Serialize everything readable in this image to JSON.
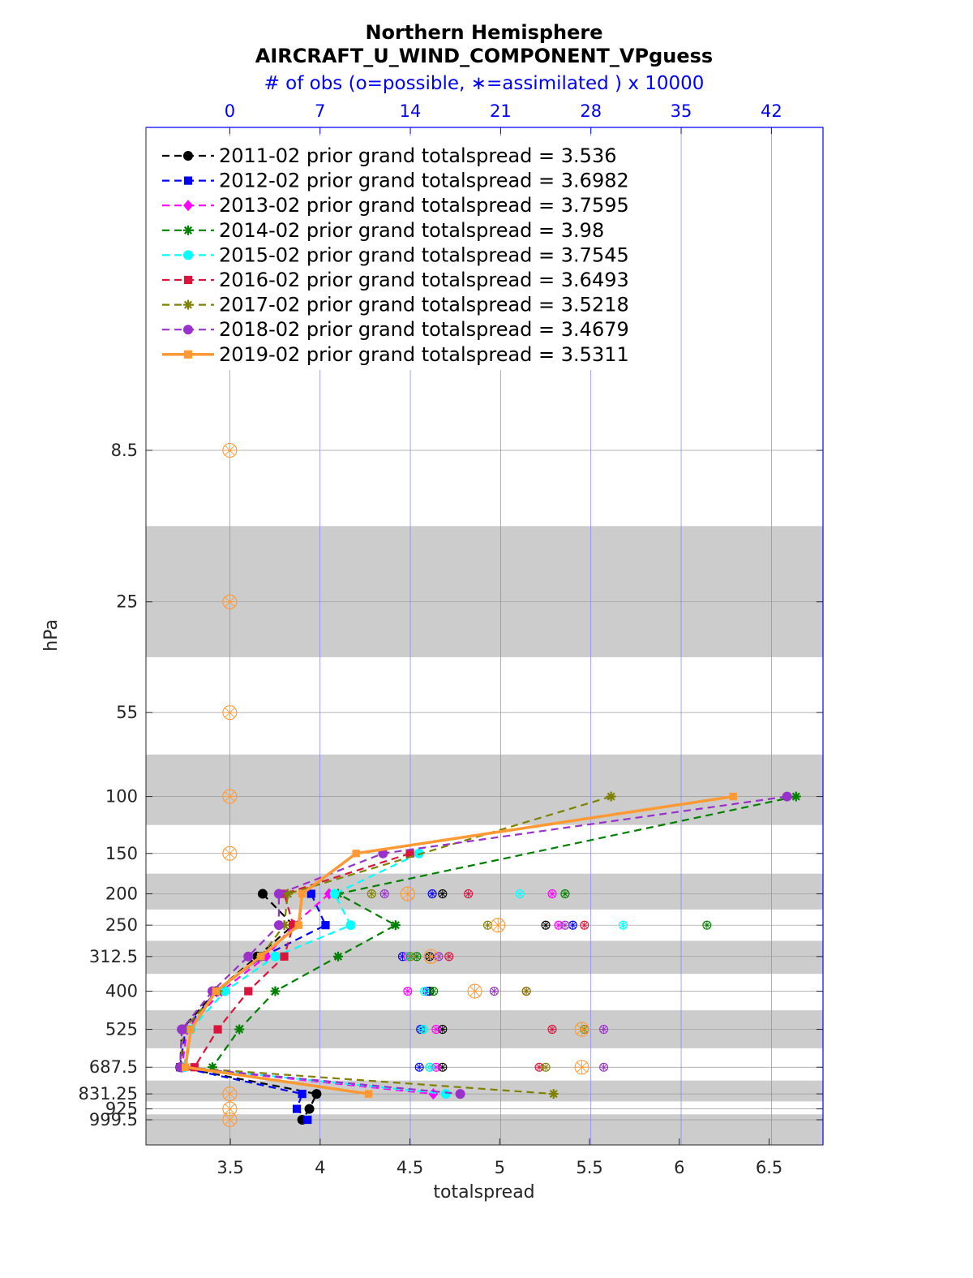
{
  "chart_data": {
    "type": "line",
    "title": "Northern Hemisphere",
    "subtitle": "AIRCRAFT_U_WIND_COMPONENT_VPguess",
    "top_axis_label": "# of obs (o=possible, ∗=assimilated ) x 10000",
    "xlabel": "totalspread",
    "ylabel": "hPa",
    "xlim": [
      3.03,
      6.8
    ],
    "xticks": [
      "3.5",
      "4",
      "4.5",
      "5",
      "5.5",
      "6",
      "6.5"
    ],
    "top_xlim": [
      -6.5,
      46
    ],
    "top_xticks": [
      "0",
      "7",
      "14",
      "21",
      "28",
      "35",
      "42"
    ],
    "y_levels": [
      "8.5",
      "25",
      "55",
      "100",
      "150",
      "200",
      "250",
      "312.5",
      "400",
      "525",
      "687.5",
      "831.25",
      "925",
      "999.5"
    ],
    "y_scale": "log-pressure (reversed)",
    "grid": true,
    "legend_position": "top-left",
    "series": [
      {
        "name": "2011-02 prior grand totalspread = 3.536",
        "color": "#000000",
        "marker": "circle",
        "line": "dashed",
        "points": [
          [
            200,
            3.68
          ],
          [
            250,
            3.85
          ],
          [
            312.5,
            3.65
          ],
          [
            400,
            3.42
          ],
          [
            525,
            3.23
          ],
          [
            687.5,
            3.22
          ],
          [
            831.25,
            3.98
          ],
          [
            925,
            3.94
          ],
          [
            999.5,
            3.9
          ]
        ],
        "obs_possible": [
          [
            200,
            16.5
          ],
          [
            250,
            24.5
          ],
          [
            312.5,
            15.5
          ],
          [
            400,
            15.5
          ],
          [
            525,
            16.5
          ],
          [
            687.5,
            16.5
          ]
        ]
      },
      {
        "name": "2012-02 prior grand totalspread = 3.6982",
        "color": "#0000ff",
        "marker": "square",
        "line": "dashed",
        "points": [
          [
            200,
            3.95
          ],
          [
            250,
            4.03
          ],
          [
            312.5,
            3.68
          ],
          [
            400,
            3.42
          ],
          [
            525,
            3.25
          ],
          [
            687.5,
            3.22
          ],
          [
            831.25,
            3.9
          ],
          [
            925,
            3.87
          ],
          [
            999.5,
            3.93
          ]
        ],
        "obs_possible": [
          [
            200,
            15.7
          ],
          [
            250,
            26.6
          ],
          [
            312.5,
            13.4
          ],
          [
            400,
            15.3
          ],
          [
            525,
            14.8
          ],
          [
            687.5,
            14.7
          ]
        ]
      },
      {
        "name": "2013-02 prior grand totalspread = 3.7595",
        "color": "#ff00ff",
        "marker": "diamond",
        "line": "dashed",
        "points": [
          [
            200,
            4.05
          ],
          [
            250,
            3.85
          ],
          [
            312.5,
            3.7
          ],
          [
            400,
            3.45
          ],
          [
            525,
            3.26
          ],
          [
            687.5,
            3.23
          ],
          [
            831.25,
            4.63
          ]
        ],
        "obs_possible": [
          [
            200,
            25
          ],
          [
            250,
            25.5
          ],
          [
            312.5,
            13.8
          ],
          [
            400,
            13.8
          ],
          [
            525,
            16
          ],
          [
            687.5,
            16
          ]
        ]
      },
      {
        "name": "2014-02 prior grand totalspread = 3.98",
        "color": "#008000",
        "marker": "star",
        "line": "dashed",
        "points": [
          [
            100,
            6.65
          ],
          [
            200,
            4.1
          ],
          [
            250,
            4.42
          ],
          [
            312.5,
            4.1
          ],
          [
            400,
            3.75
          ],
          [
            525,
            3.55
          ],
          [
            687.5,
            3.4
          ]
        ],
        "obs_possible": [
          [
            200,
            26
          ],
          [
            250,
            37
          ],
          [
            312.5,
            14.5
          ],
          [
            400,
            15.8
          ],
          [
            525,
            15
          ],
          [
            687.5,
            15.5
          ]
        ]
      },
      {
        "name": "2015-02 prior grand totalspread = 3.7545",
        "color": "#00ffff",
        "marker": "circle",
        "line": "dashed",
        "points": [
          [
            150,
            4.55
          ],
          [
            200,
            4.08
          ],
          [
            250,
            4.17
          ],
          [
            312.5,
            3.75
          ],
          [
            400,
            3.47
          ],
          [
            525,
            3.28
          ],
          [
            687.5,
            3.24
          ],
          [
            831.25,
            4.7
          ]
        ],
        "obs_possible": [
          [
            200,
            22.5
          ],
          [
            250,
            30.5
          ],
          [
            312.5,
            13.9
          ],
          [
            400,
            15.1
          ],
          [
            525,
            15
          ],
          [
            687.5,
            15.5
          ]
        ]
      },
      {
        "name": "2016-02 prior grand totalspread = 3.6493",
        "color": "#dc143c",
        "marker": "square",
        "line": "dashed",
        "points": [
          [
            150,
            4.5
          ],
          [
            200,
            3.8
          ],
          [
            250,
            3.85
          ],
          [
            312.5,
            3.8
          ],
          [
            400,
            3.6
          ],
          [
            525,
            3.43
          ],
          [
            687.5,
            3.3
          ]
        ],
        "obs_possible": [
          [
            200,
            18.5
          ],
          [
            250,
            27.5
          ],
          [
            312.5,
            17
          ],
          [
            400,
            23
          ],
          [
            525,
            25
          ],
          [
            687.5,
            24
          ]
        ]
      },
      {
        "name": "2017-02 prior grand totalspread = 3.5218",
        "color": "#808000",
        "marker": "star",
        "line": "dashed",
        "points": [
          [
            100,
            5.62
          ],
          [
            200,
            3.82
          ],
          [
            250,
            3.8
          ],
          [
            312.5,
            3.67
          ],
          [
            400,
            3.43
          ],
          [
            525,
            3.24
          ],
          [
            687.5,
            3.22
          ],
          [
            831.25,
            5.3
          ]
        ],
        "obs_possible": [
          [
            200,
            11
          ],
          [
            250,
            20
          ],
          [
            312.5,
            14
          ],
          [
            400,
            23
          ],
          [
            525,
            27.5
          ],
          [
            687.5,
            24.5
          ]
        ]
      },
      {
        "name": "2018-02 prior grand totalspread = 3.4679",
        "color": "#9932cc",
        "marker": "circle",
        "line": "dashed",
        "points": [
          [
            100,
            6.6
          ],
          [
            150,
            4.35
          ],
          [
            200,
            3.77
          ],
          [
            250,
            3.77
          ],
          [
            312.5,
            3.6
          ],
          [
            400,
            3.4
          ],
          [
            525,
            3.23
          ],
          [
            687.5,
            3.22
          ],
          [
            831.25,
            4.78
          ]
        ],
        "obs_possible": [
          [
            200,
            12
          ],
          [
            250,
            26
          ],
          [
            312.5,
            16.2
          ],
          [
            400,
            20.5
          ],
          [
            525,
            29
          ],
          [
            687.5,
            29
          ]
        ]
      },
      {
        "name": "2019-02 prior grand totalspread = 3.5311",
        "color": "#ff9933",
        "marker": "square",
        "line": "solid",
        "points": [
          [
            100,
            6.3
          ],
          [
            150,
            4.2
          ],
          [
            200,
            3.9
          ],
          [
            250,
            3.88
          ],
          [
            312.5,
            3.67
          ],
          [
            400,
            3.42
          ],
          [
            525,
            3.28
          ],
          [
            687.5,
            3.25
          ],
          [
            831.25,
            4.27
          ]
        ],
        "obs_possible": [
          [
            8.5,
            0
          ],
          [
            25,
            0
          ],
          [
            55,
            0
          ],
          [
            100,
            0
          ],
          [
            150,
            0
          ],
          [
            200,
            13.8
          ],
          [
            250,
            20.8
          ],
          [
            312.5,
            15.6
          ],
          [
            400,
            19
          ],
          [
            525,
            27.3
          ],
          [
            687.5,
            27.3
          ],
          [
            831.25,
            0
          ],
          [
            925,
            0
          ],
          [
            999.5,
            0
          ]
        ]
      }
    ]
  }
}
